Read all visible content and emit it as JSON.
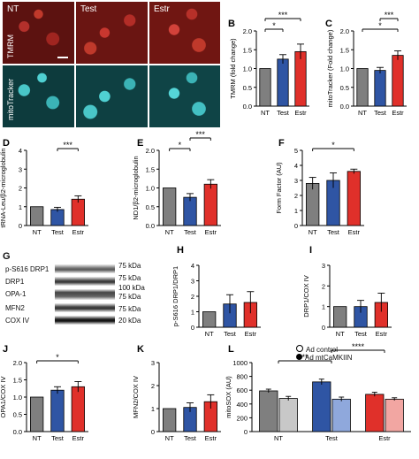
{
  "panels": {
    "A": {
      "label": "A",
      "columns": [
        "NT",
        "Test",
        "Estr"
      ],
      "rows": [
        "TMRM",
        "mitoTracker"
      ]
    },
    "G": {
      "label": "G",
      "proteins": [
        "p-S616 DRP1",
        "DRP1",
        "OPA-1",
        "MFN2",
        "COX IV"
      ],
      "weights": [
        "75 kDa",
        "75 kDa",
        "100 kDa",
        "75 kDa",
        "75 kDa",
        "20 kDa"
      ]
    }
  },
  "legend": {
    "items": [
      "Ad control",
      "Ad mtCaMKIIN"
    ]
  },
  "colors": {
    "NT": "#7f7f7f",
    "Test": "#2f55a4",
    "Estr": "#e0302a",
    "NT_light": "#c8c8c8",
    "Test_light": "#8fa8dc",
    "Estr_light": "#f2a6a2"
  },
  "chart_data": [
    {
      "id": "B",
      "type": "bar",
      "ylabel": "TMRM (fold change)",
      "categories": [
        "NT",
        "Test",
        "Estr"
      ],
      "values": [
        1.0,
        1.25,
        1.45
      ],
      "errors": [
        0,
        0.12,
        0.2
      ],
      "ylim": [
        0,
        2
      ],
      "yticks": [
        "0.0",
        "0.5",
        "1.0",
        "1.5",
        "2.0"
      ],
      "sig": [
        [
          "NT",
          "Test",
          "*"
        ],
        [
          "NT",
          "Estr",
          "***"
        ]
      ]
    },
    {
      "id": "C",
      "type": "bar",
      "ylabel": "mitoTracker (Fold change)",
      "categories": [
        "NT",
        "Test",
        "Estr"
      ],
      "values": [
        1.0,
        0.95,
        1.35
      ],
      "errors": [
        0,
        0.08,
        0.12
      ],
      "ylim": [
        0,
        2
      ],
      "yticks": [
        "0.0",
        "0.5",
        "1.0",
        "1.5",
        "2.0"
      ],
      "sig": [
        [
          "NT",
          "Estr",
          "*"
        ],
        [
          "Test",
          "Estr",
          "***"
        ]
      ]
    },
    {
      "id": "D",
      "type": "bar",
      "ylabel": "tRNA-Leu/β2-microglobulin",
      "categories": [
        "NT",
        "Test",
        "Estr"
      ],
      "values": [
        1.0,
        0.85,
        1.4
      ],
      "errors": [
        0,
        0.12,
        0.18
      ],
      "ylim": [
        0,
        4
      ],
      "yticks": [
        "0",
        "1",
        "2",
        "3",
        "4"
      ],
      "sig": [
        [
          "Test",
          "Estr",
          "***"
        ]
      ]
    },
    {
      "id": "E",
      "type": "bar",
      "ylabel": "ND1/β2-microglobulin",
      "categories": [
        "NT",
        "Test",
        "Estr"
      ],
      "values": [
        1.0,
        0.75,
        1.1
      ],
      "errors": [
        0,
        0.1,
        0.12
      ],
      "ylim": [
        0,
        2
      ],
      "yticks": [
        "0.0",
        "0.5",
        "1.0",
        "1.5",
        "2.0"
      ],
      "sig": [
        [
          "NT",
          "Test",
          "*"
        ],
        [
          "Test",
          "Estr",
          "***"
        ]
      ]
    },
    {
      "id": "F",
      "type": "bar",
      "ylabel": "Form Factor (AU)",
      "categories": [
        "NT",
        "Test",
        "Estr"
      ],
      "values": [
        2.8,
        3.0,
        3.6
      ],
      "errors": [
        0.4,
        0.5,
        0.15
      ],
      "ylim": [
        0,
        5
      ],
      "yticks": [
        "0",
        "1",
        "2",
        "3",
        "4",
        "5"
      ],
      "sig": [
        [
          "NT",
          "Estr",
          "*"
        ]
      ]
    },
    {
      "id": "H",
      "type": "bar",
      "ylabel": "p-S616 DRP1/DRP1",
      "categories": [
        "NT",
        "Test",
        "Estr"
      ],
      "values": [
        1.0,
        1.5,
        1.6
      ],
      "errors": [
        0,
        0.6,
        0.7
      ],
      "ylim": [
        0,
        4
      ],
      "yticks": [
        "0",
        "1",
        "2",
        "3",
        "4"
      ],
      "sig": []
    },
    {
      "id": "I",
      "type": "bar",
      "ylabel": "DRP1/COX IV",
      "categories": [
        "NT",
        "Test",
        "Estr"
      ],
      "values": [
        1.0,
        1.0,
        1.2
      ],
      "errors": [
        0,
        0.3,
        0.45
      ],
      "ylim": [
        0,
        3
      ],
      "yticks": [
        "0",
        "1",
        "2",
        "3"
      ],
      "sig": []
    },
    {
      "id": "J",
      "type": "bar",
      "ylabel": "OPA1/COX IV",
      "categories": [
        "NT",
        "Test",
        "Estr"
      ],
      "values": [
        1.0,
        1.2,
        1.3
      ],
      "errors": [
        0,
        0.1,
        0.15
      ],
      "ylim": [
        0,
        2
      ],
      "yticks": [
        "0.0",
        "0.5",
        "1.0",
        "1.5",
        "2.0"
      ],
      "sig": [
        [
          "NT",
          "Estr",
          "*"
        ]
      ]
    },
    {
      "id": "K",
      "type": "bar",
      "ylabel": "MFN2/COX IV",
      "categories": [
        "NT",
        "Test",
        "Estr"
      ],
      "values": [
        1.0,
        1.05,
        1.3
      ],
      "errors": [
        0,
        0.2,
        0.3
      ],
      "ylim": [
        0,
        3
      ],
      "yticks": [
        "0",
        "1",
        "2",
        "3"
      ],
      "sig": []
    },
    {
      "id": "L",
      "type": "grouped-bar",
      "ylabel": "mitoSOX (AU)",
      "categories": [
        "NT",
        "Test",
        "Estr"
      ],
      "series": [
        {
          "name": "Ad control",
          "values": [
            590,
            720,
            540
          ]
        },
        {
          "name": "Ad mtCaMKIIN",
          "values": [
            480,
            470,
            470
          ]
        }
      ],
      "errors": [
        [
          25,
          40,
          30
        ],
        [
          30,
          30,
          20
        ]
      ],
      "ylim": [
        0,
        1000
      ],
      "yticks": [
        "0",
        "200",
        "400",
        "600",
        "800",
        "1000"
      ],
      "sig": [
        [
          "NT",
          "Test",
          "**"
        ],
        [
          "Test",
          "Estr",
          "****"
        ]
      ]
    }
  ]
}
